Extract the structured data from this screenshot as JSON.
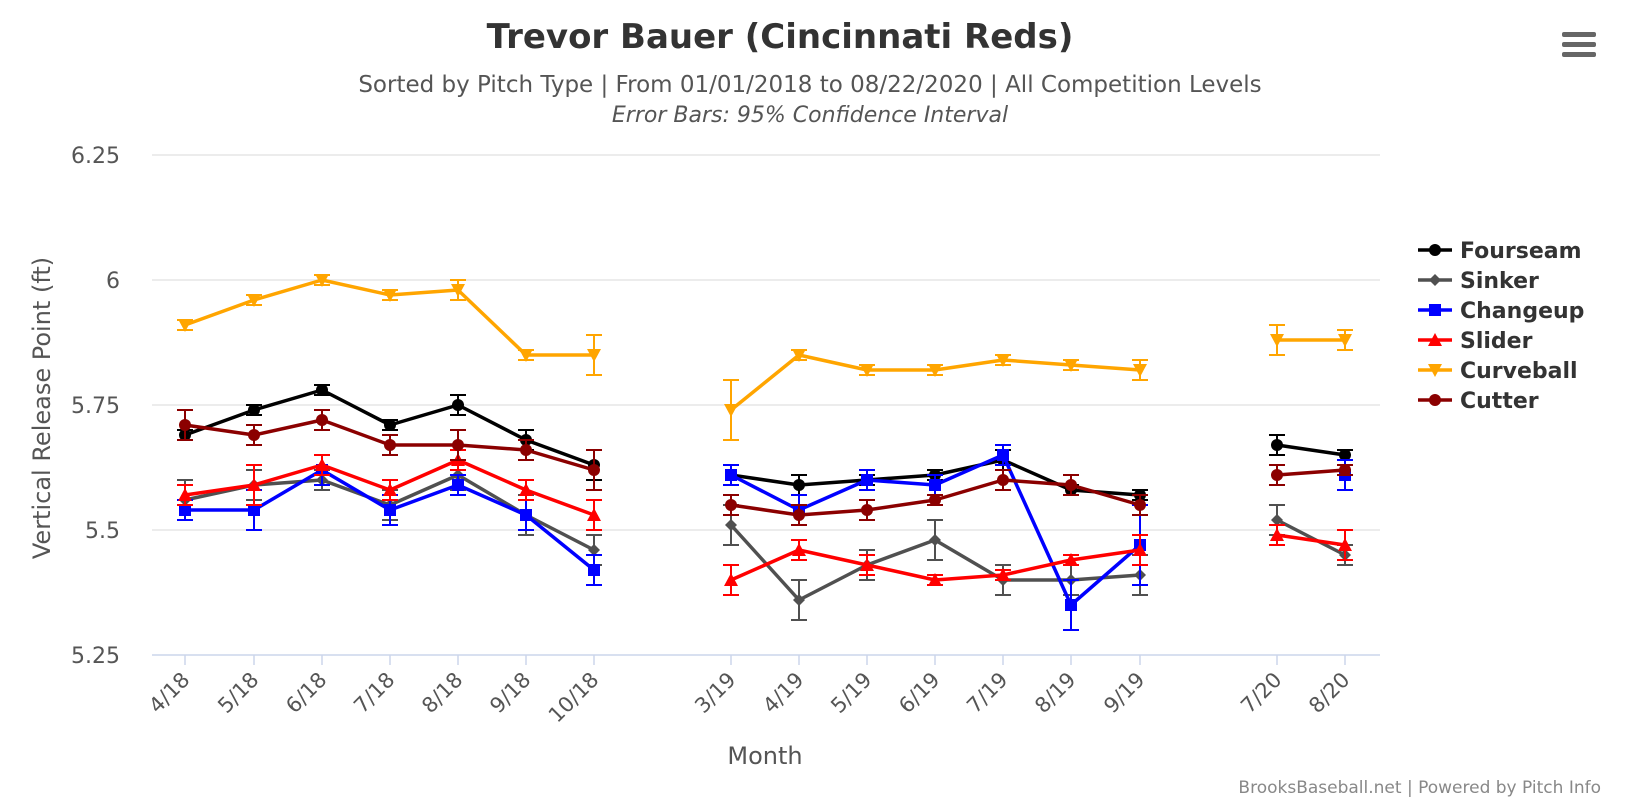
{
  "colors": {
    "Fourseam": "#000000",
    "Sinker": "#505050",
    "Changeup": "#0000ff",
    "Slider": "#ff0000",
    "Curveball": "#ffa500",
    "Cutter": "#8b0000",
    "grid": "#e6e6e6",
    "axis": "#ccd6eb"
  },
  "menu": {
    "icon": "hamburger-menu-icon"
  },
  "credits": "BrooksBaseball.net | Powered by Pitch Info",
  "chart_data": {
    "type": "line",
    "title": "Trevor Bauer (Cincinnati Reds)",
    "subtitle": "Sorted by Pitch Type | From 01/01/2018 to 08/22/2020 | All Competition Levels",
    "subtitle2": "Error Bars: 95% Confidence Interval",
    "xlabel": "Month",
    "ylabel": "Vertical Release Point (ft)",
    "ylim": [
      5.25,
      6.25
    ],
    "yticks": [
      5.25,
      5.5,
      5.75,
      6,
      6.25
    ],
    "ytick_labels": [
      "5.25",
      "5.5",
      "5.75",
      "6",
      "6.25"
    ],
    "categories": [
      "4/18",
      "5/18",
      "6/18",
      "7/18",
      "8/18",
      "9/18",
      "10/18",
      "3/19",
      "4/19",
      "5/19",
      "6/19",
      "7/19",
      "8/19",
      "9/19",
      "7/20",
      "8/20"
    ],
    "segments": [
      [
        0,
        6
      ],
      [
        7,
        13
      ],
      [
        14,
        15
      ]
    ],
    "grid": true,
    "legend_position": "right",
    "series": [
      {
        "name": "Fourseam",
        "marker": "circle",
        "values": [
          5.69,
          5.74,
          5.78,
          5.71,
          5.75,
          5.68,
          5.63,
          5.61,
          5.59,
          5.6,
          5.61,
          5.64,
          5.58,
          5.57,
          5.67,
          5.65
        ],
        "err": [
          0.01,
          0.01,
          0.01,
          0.01,
          0.02,
          0.02,
          0.03,
          0.02,
          0.02,
          0.01,
          0.01,
          0.02,
          0.01,
          0.01,
          0.02,
          0.01
        ]
      },
      {
        "name": "Sinker",
        "marker": "diamond",
        "values": [
          5.56,
          5.59,
          5.6,
          5.55,
          5.61,
          5.53,
          5.46,
          5.51,
          5.36,
          5.43,
          5.48,
          5.4,
          5.4,
          5.41,
          5.52,
          5.45
        ],
        "err": [
          0.04,
          0.03,
          0.02,
          0.03,
          0.03,
          0.04,
          0.03,
          0.04,
          0.04,
          0.03,
          0.04,
          0.03,
          0.03,
          0.04,
          0.03,
          0.02
        ]
      },
      {
        "name": "Changeup",
        "marker": "square",
        "values": [
          5.54,
          5.54,
          5.62,
          5.54,
          5.59,
          5.53,
          5.42,
          5.61,
          5.54,
          5.6,
          5.59,
          5.65,
          5.35,
          5.47,
          null,
          5.61
        ],
        "err": [
          0.02,
          0.04,
          0.03,
          0.03,
          0.02,
          0.03,
          0.03,
          0.02,
          0.03,
          0.02,
          0.02,
          0.02,
          0.05,
          0.08,
          null,
          0.03
        ]
      },
      {
        "name": "Slider",
        "marker": "triangle",
        "values": [
          5.57,
          5.59,
          5.63,
          5.58,
          5.64,
          5.58,
          5.53,
          5.4,
          5.46,
          5.43,
          5.4,
          5.41,
          5.44,
          5.46,
          5.49,
          5.47
        ],
        "err": [
          0.02,
          0.04,
          0.02,
          0.02,
          0.02,
          0.02,
          0.03,
          0.03,
          0.02,
          0.02,
          0.01,
          0.01,
          0.01,
          0.03,
          0.02,
          0.03
        ]
      },
      {
        "name": "Curveball",
        "marker": "triangle-down",
        "values": [
          5.91,
          5.96,
          6.0,
          5.97,
          5.98,
          5.85,
          5.85,
          5.74,
          5.85,
          5.82,
          5.82,
          5.84,
          5.83,
          5.82,
          5.88,
          5.88
        ],
        "err": [
          0.01,
          0.01,
          0.01,
          0.01,
          0.02,
          0.01,
          0.04,
          0.06,
          0.01,
          0.01,
          0.01,
          0.01,
          0.01,
          0.02,
          0.03,
          0.02
        ]
      },
      {
        "name": "Cutter",
        "marker": "circle",
        "values": [
          5.71,
          5.69,
          5.72,
          5.67,
          5.67,
          5.66,
          5.62,
          5.55,
          5.53,
          5.54,
          5.56,
          5.6,
          5.59,
          5.55,
          5.61,
          5.62
        ],
        "err": [
          0.03,
          0.02,
          0.02,
          0.02,
          0.03,
          0.02,
          0.04,
          0.02,
          0.02,
          0.02,
          0.01,
          0.02,
          0.02,
          0.02,
          0.02,
          0.01
        ]
      }
    ]
  }
}
